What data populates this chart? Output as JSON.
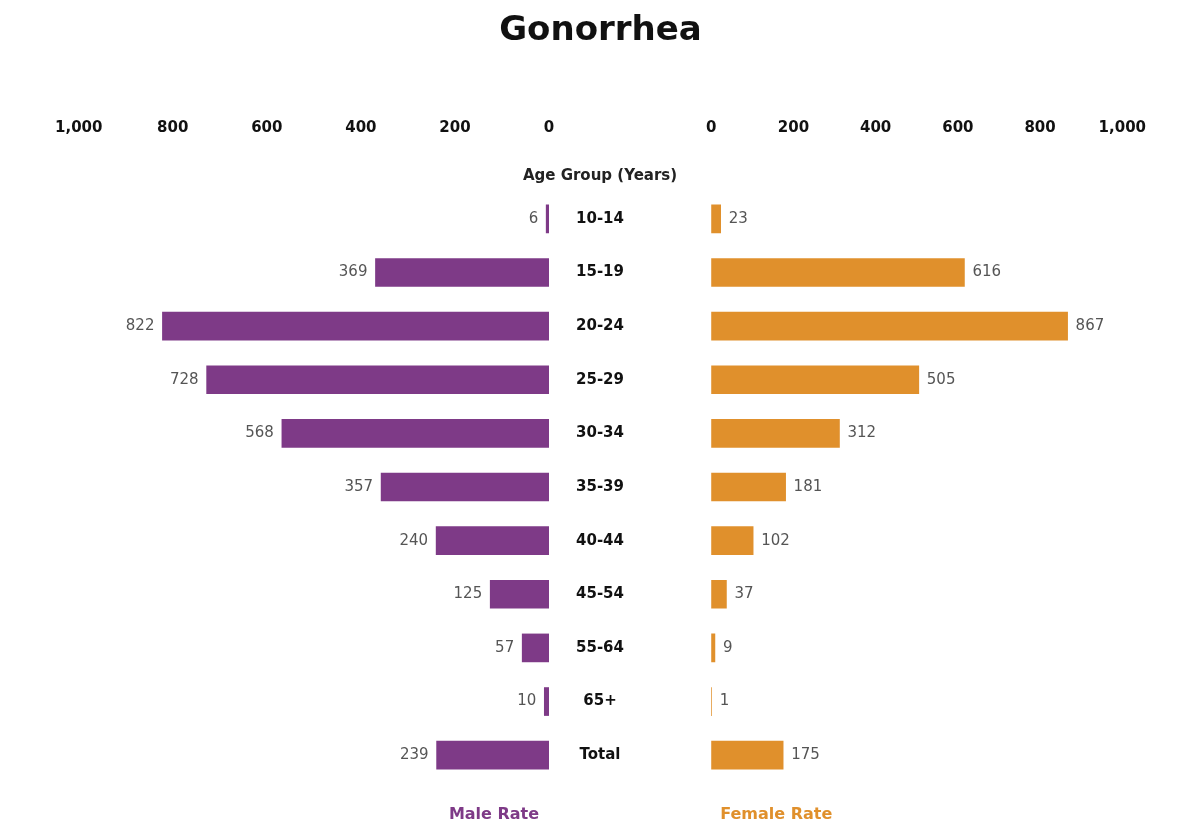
{
  "chart_data": [
    {
      "type": "bar",
      "orientation": "horizontal",
      "title": "Gonorrhea",
      "ylabel": "Age Group (Years)",
      "xlabel": "Male Rate",
      "categories": [
        "10-14",
        "15-19",
        "20-24",
        "25-29",
        "30-34",
        "35-39",
        "40-44",
        "45-54",
        "55-64",
        "65+",
        "Total"
      ],
      "values": [
        6,
        369,
        822,
        728,
        568,
        357,
        240,
        125,
        57,
        10,
        239
      ],
      "color": "#7e3a87",
      "xlim": [
        1000,
        0
      ],
      "xticks": [
        {
          "value": 1000,
          "label": "1,000"
        },
        800,
        600,
        400,
        200,
        0
      ],
      "data_labels": true
    },
    {
      "type": "bar",
      "orientation": "horizontal",
      "xlabel": "Female Rate",
      "values": [
        23,
        616,
        867,
        505,
        312,
        181,
        102,
        37,
        9,
        1,
        175
      ],
      "color": "#e0902c",
      "xlim": [
        0,
        1000
      ],
      "xticks": [
        0,
        200,
        400,
        600,
        800,
        {
          "value": 1000,
          "label": "1,000"
        }
      ],
      "data_labels": true,
      "tick_labels": "x"
    }
  ]
}
